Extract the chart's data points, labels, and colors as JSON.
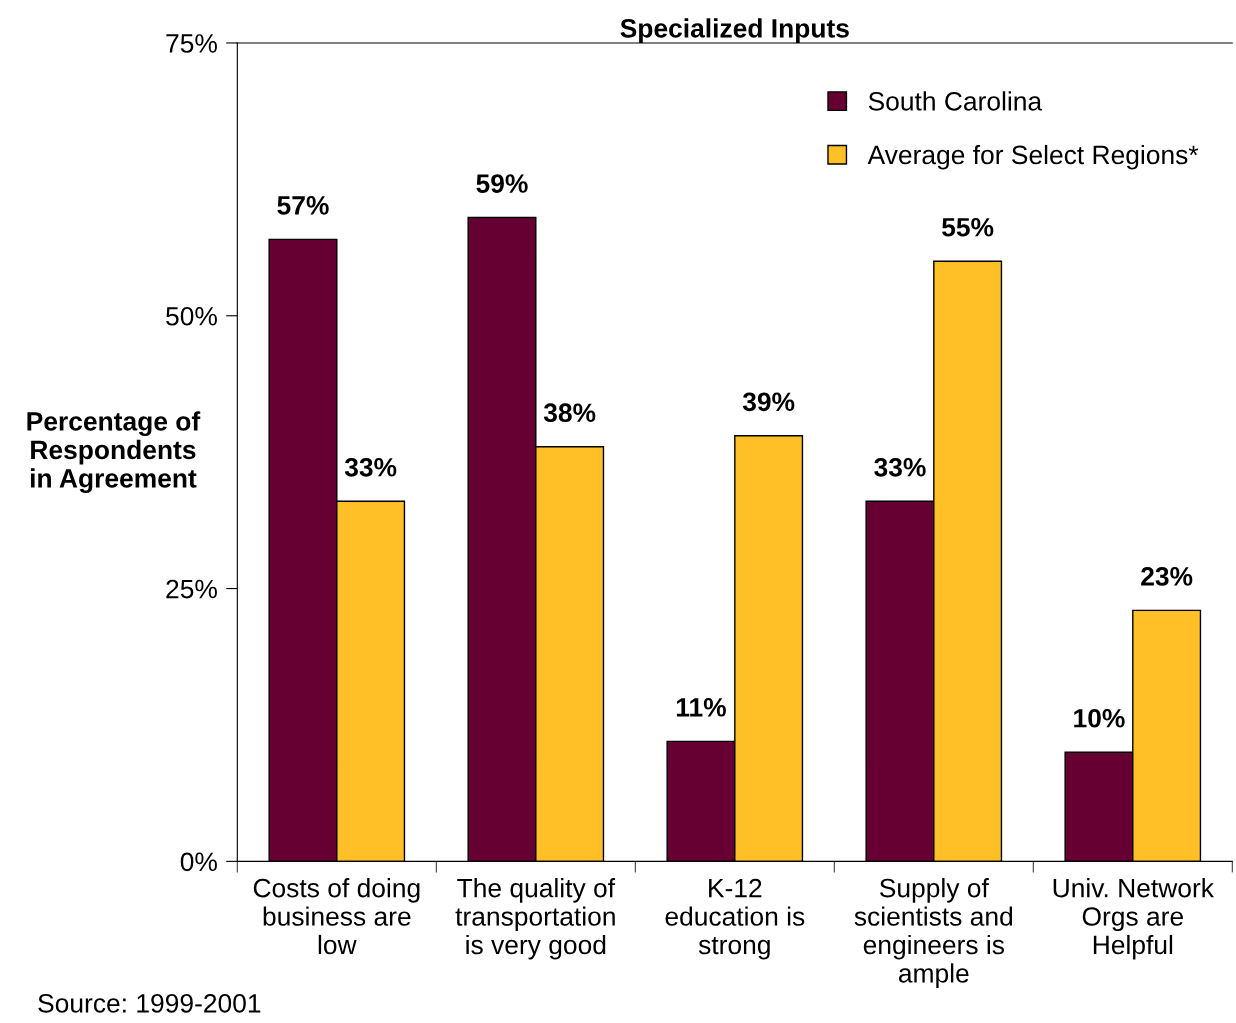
{
  "chart_data": {
    "type": "bar",
    "title": "Specialized Inputs",
    "categories": [
      "Costs of doing\nbusiness are\nlow",
      "The quality of\ntransportation\nis very good",
      "K-12\neducation is\nstrong",
      "Supply of\nscientists and\nengineers is\nample",
      "Univ. Network\nOrgs are\nHelpful"
    ],
    "series": [
      {
        "name": "South Carolina",
        "color": "#660033",
        "values": [
          57,
          59,
          11,
          33,
          10
        ]
      },
      {
        "name": "Average for Select Regions*",
        "color": "#ffbf26",
        "values": [
          33,
          38,
          39,
          55,
          23
        ]
      }
    ],
    "ylabel": "Percentage of\nRespondents\nin Agreement",
    "ylim": [
      0,
      75
    ],
    "yticks": [
      {
        "value": 0,
        "label": "0%"
      },
      {
        "value": 25,
        "label": "25%"
      },
      {
        "value": 50,
        "label": "50%"
      },
      {
        "value": 75,
        "label": "75%"
      }
    ],
    "value_labels": [
      [
        "57%",
        "59%",
        "11%",
        "33%",
        "10%"
      ],
      [
        "33%",
        "38%",
        "39%",
        "55%",
        "23%"
      ]
    ],
    "annotations": [
      "Source: 1999-2001"
    ],
    "legend": "top right",
    "grid": false
  }
}
